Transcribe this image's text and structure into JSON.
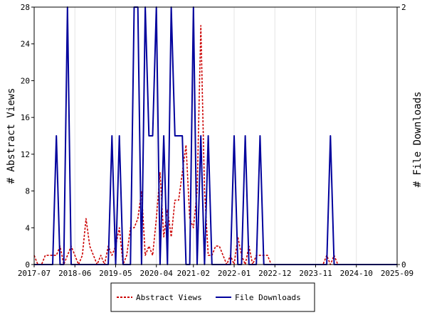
{
  "chart_data": {
    "type": "line",
    "title": "",
    "ylabel_left": "# Abstract Views",
    "ylabel_right": "# File Downloads",
    "ylim_left": [
      0,
      28
    ],
    "ylim_right": [
      0,
      2
    ],
    "yticks_left": [
      "0",
      "4",
      "8",
      "12",
      "16",
      "20",
      "24",
      "28"
    ],
    "yticks_right": [
      "0",
      "2"
    ],
    "xlim": [
      "2017-07",
      "2025-09"
    ],
    "xticks": [
      "2017-07",
      "2018-06",
      "2019-05",
      "2020-04",
      "2021-02",
      "2022-01",
      "2022-12",
      "2023-11",
      "2024-10",
      "2025-09"
    ],
    "legend_position": "bottom",
    "series": [
      {
        "name": "Abstract Views",
        "axis": "left",
        "color": "#cc0000",
        "style": "dashed",
        "points": [
          [
            "2017-07",
            1
          ],
          [
            "2017-08",
            0
          ],
          [
            "2017-09",
            0
          ],
          [
            "2017-10",
            1
          ],
          [
            "2017-11",
            1
          ],
          [
            "2017-12",
            1
          ],
          [
            "2018-01",
            1
          ],
          [
            "2018-02",
            2
          ],
          [
            "2018-03",
            0
          ],
          [
            "2018-04",
            1
          ],
          [
            "2018-05",
            2
          ],
          [
            "2018-06",
            1
          ],
          [
            "2018-07",
            0
          ],
          [
            "2018-08",
            1
          ],
          [
            "2018-09",
            5
          ],
          [
            "2018-10",
            2
          ],
          [
            "2018-11",
            1
          ],
          [
            "2018-12",
            0
          ],
          [
            "2019-01",
            1
          ],
          [
            "2019-02",
            0
          ],
          [
            "2019-03",
            2
          ],
          [
            "2019-04",
            1
          ],
          [
            "2019-05",
            2
          ],
          [
            "2019-06",
            4
          ],
          [
            "2019-07",
            0
          ],
          [
            "2019-08",
            1
          ],
          [
            "2019-09",
            4
          ],
          [
            "2019-10",
            4
          ],
          [
            "2019-11",
            5
          ],
          [
            "2019-12",
            8
          ],
          [
            "2020-01",
            1
          ],
          [
            "2020-02",
            2
          ],
          [
            "2020-03",
            1
          ],
          [
            "2020-04",
            5
          ],
          [
            "2020-05",
            10
          ],
          [
            "2020-06",
            3
          ],
          [
            "2020-07",
            6
          ],
          [
            "2020-08",
            3
          ],
          [
            "2020-09",
            7
          ],
          [
            "2020-10",
            7
          ],
          [
            "2020-11",
            10
          ],
          [
            "2020-12",
            13
          ],
          [
            "2021-01",
            5
          ],
          [
            "2021-02",
            4
          ],
          [
            "2021-03",
            8
          ],
          [
            "2021-04",
            26
          ],
          [
            "2021-05",
            8
          ],
          [
            "2021-06",
            1
          ],
          [
            "2021-07",
            1
          ],
          [
            "2021-08",
            2
          ],
          [
            "2021-09",
            2
          ],
          [
            "2021-10",
            1
          ],
          [
            "2021-11",
            0
          ],
          [
            "2021-12",
            1
          ],
          [
            "2022-01",
            0
          ],
          [
            "2022-02",
            3
          ],
          [
            "2022-03",
            1
          ],
          [
            "2022-04",
            0
          ],
          [
            "2022-05",
            2
          ],
          [
            "2022-06",
            0
          ],
          [
            "2022-07",
            1
          ],
          [
            "2022-08",
            1
          ],
          [
            "2022-09",
            1
          ],
          [
            "2022-10",
            1
          ],
          [
            "2022-11",
            0
          ],
          [
            "2024-01",
            0
          ],
          [
            "2024-02",
            1
          ],
          [
            "2024-03",
            0
          ],
          [
            "2024-04",
            1
          ],
          [
            "2024-05",
            0
          ],
          [
            "2025-09",
            0
          ]
        ]
      },
      {
        "name": "File Downloads",
        "axis": "right",
        "color": "#00009c",
        "style": "solid",
        "points": [
          [
            "2017-07",
            0
          ],
          [
            "2017-12",
            0
          ],
          [
            "2018-01",
            1
          ],
          [
            "2018-02",
            0
          ],
          [
            "2018-03",
            0
          ],
          [
            "2018-04",
            2
          ],
          [
            "2018-05",
            0
          ],
          [
            "2018-06",
            0
          ],
          [
            "2019-03",
            0
          ],
          [
            "2019-04",
            1
          ],
          [
            "2019-05",
            0
          ],
          [
            "2019-06",
            1
          ],
          [
            "2019-07",
            0
          ],
          [
            "2019-08",
            0
          ],
          [
            "2019-09",
            0
          ],
          [
            "2019-10",
            2
          ],
          [
            "2019-11",
            2
          ],
          [
            "2019-12",
            0
          ],
          [
            "2020-01",
            2
          ],
          [
            "2020-02",
            1
          ],
          [
            "2020-03",
            1
          ],
          [
            "2020-04",
            2
          ],
          [
            "2020-05",
            0
          ],
          [
            "2020-06",
            1
          ],
          [
            "2020-07",
            0
          ],
          [
            "2020-08",
            2
          ],
          [
            "2020-09",
            1
          ],
          [
            "2020-10",
            1
          ],
          [
            "2020-11",
            1
          ],
          [
            "2020-12",
            0
          ],
          [
            "2021-01",
            0
          ],
          [
            "2021-02",
            2
          ],
          [
            "2021-03",
            0
          ],
          [
            "2021-04",
            1
          ],
          [
            "2021-05",
            0
          ],
          [
            "2021-06",
            1
          ],
          [
            "2021-07",
            0
          ],
          [
            "2021-08",
            0
          ],
          [
            "2021-12",
            0
          ],
          [
            "2022-01",
            1
          ],
          [
            "2022-02",
            0
          ],
          [
            "2022-03",
            0
          ],
          [
            "2022-04",
            1
          ],
          [
            "2022-05",
            0
          ],
          [
            "2022-06",
            0
          ],
          [
            "2022-07",
            0
          ],
          [
            "2022-08",
            1
          ],
          [
            "2022-09",
            0
          ],
          [
            "2022-10",
            0
          ],
          [
            "2024-02",
            0
          ],
          [
            "2024-03",
            1
          ],
          [
            "2024-04",
            0
          ],
          [
            "2025-09",
            0
          ]
        ]
      }
    ]
  }
}
